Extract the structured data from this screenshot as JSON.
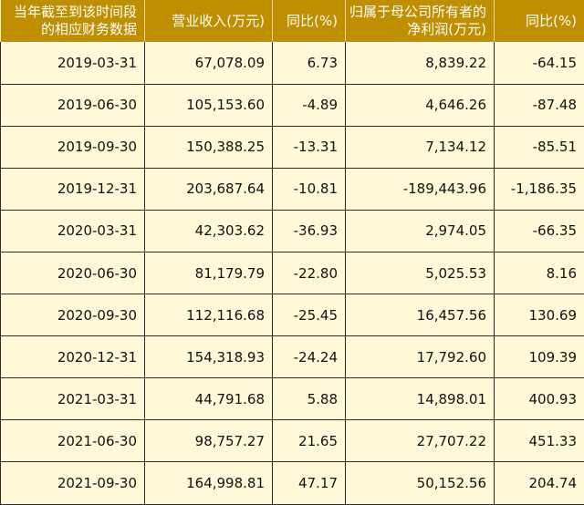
{
  "table": {
    "headers": [
      "当年截至到该时间段的相应财务数据",
      "营业收入(万元)",
      "同比(%)",
      "归属于母公司所有者的净利润(万元)",
      "同比(%)"
    ],
    "rows": [
      [
        "2019-03-31",
        "67,078.09",
        "6.73",
        "8,839.22",
        "-64.15"
      ],
      [
        "2019-06-30",
        "105,153.60",
        "-4.89",
        "4,646.26",
        "-87.48"
      ],
      [
        "2019-09-30",
        "150,388.25",
        "-13.31",
        "7,134.12",
        "-85.51"
      ],
      [
        "2019-12-31",
        "203,687.64",
        "-10.81",
        "-189,443.96",
        "-1,186.35"
      ],
      [
        "2020-03-31",
        "42,303.62",
        "-36.93",
        "2,974.05",
        "-66.35"
      ],
      [
        "2020-06-30",
        "81,179.79",
        "-22.80",
        "5,025.53",
        "8.16"
      ],
      [
        "2020-09-30",
        "112,116.68",
        "-25.45",
        "16,457.56",
        "130.69"
      ],
      [
        "2020-12-31",
        "154,318.93",
        "-24.24",
        "17,792.60",
        "109.39"
      ],
      [
        "2021-03-31",
        "44,791.68",
        "5.88",
        "14,898.01",
        "400.93"
      ],
      [
        "2021-06-30",
        "98,757.27",
        "21.65",
        "27,707.22",
        "451.33"
      ],
      [
        "2021-09-30",
        "164,998.81",
        "47.17",
        "50,152.56",
        "204.74"
      ]
    ]
  },
  "colors": {
    "header_bg": "#bf8f00",
    "header_text": "#ffffff",
    "cell_bg": "#fff8d9",
    "border": "#2b2b2b"
  }
}
